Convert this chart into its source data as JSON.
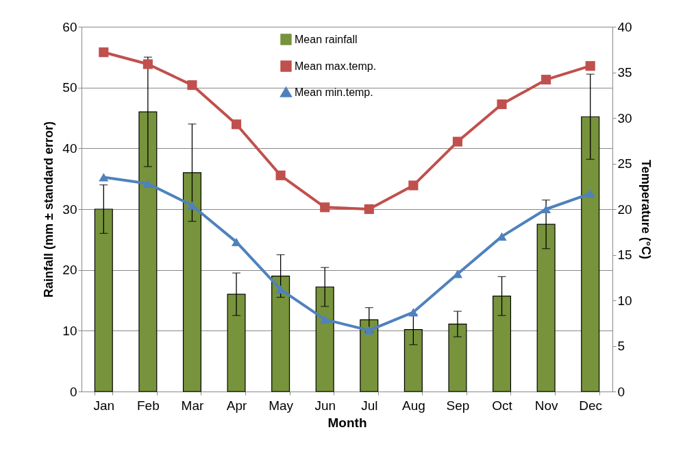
{
  "chart_data": {
    "type": "bar",
    "xlabel": "Month",
    "ylabel": "Rainfall (mm ± standard error)",
    "y2label": "Temperature (°C)",
    "categories": [
      "Jan",
      "Feb",
      "Mar",
      "Apr",
      "May",
      "Jun",
      "Jul",
      "Aug",
      "Sep",
      "Oct",
      "Nov",
      "Dec"
    ],
    "series": [
      {
        "name": "Mean rainfall",
        "color": "#77933c",
        "values": [
          30,
          46,
          36,
          16,
          19,
          17.2,
          11.8,
          10.2,
          11.1,
          15.7,
          27.5,
          45.2
        ],
        "errors": [
          4,
          9,
          8,
          3.5,
          3.5,
          3.2,
          2,
          2.5,
          2.1,
          3.2,
          4,
          7
        ]
      },
      {
        "name": "Mean max.temp.",
        "type": "line",
        "axis": "y2",
        "marker": "square",
        "color": "#c0504d",
        "values": [
          37.2,
          35.9,
          33.6,
          29.3,
          23.7,
          20.2,
          20,
          22.6,
          27.4,
          31.5,
          34.2,
          35.7
        ]
      },
      {
        "name": "Mean min.temp.",
        "type": "line",
        "axis": "y2",
        "marker": "triangle",
        "color": "#4f81bd",
        "values": [
          23.5,
          22.8,
          20.4,
          16.4,
          11.2,
          7.9,
          6.7,
          8.7,
          12.9,
          17,
          20,
          21.7
        ]
      }
    ],
    "ylim": [
      0,
      60
    ],
    "yticks": [
      0,
      10,
      20,
      30,
      40,
      50,
      60
    ],
    "y2lim": [
      0,
      40
    ],
    "y2ticks": [
      0,
      5,
      10,
      15,
      20,
      25,
      30,
      35,
      40
    ],
    "grid": "y",
    "legend": "top"
  }
}
